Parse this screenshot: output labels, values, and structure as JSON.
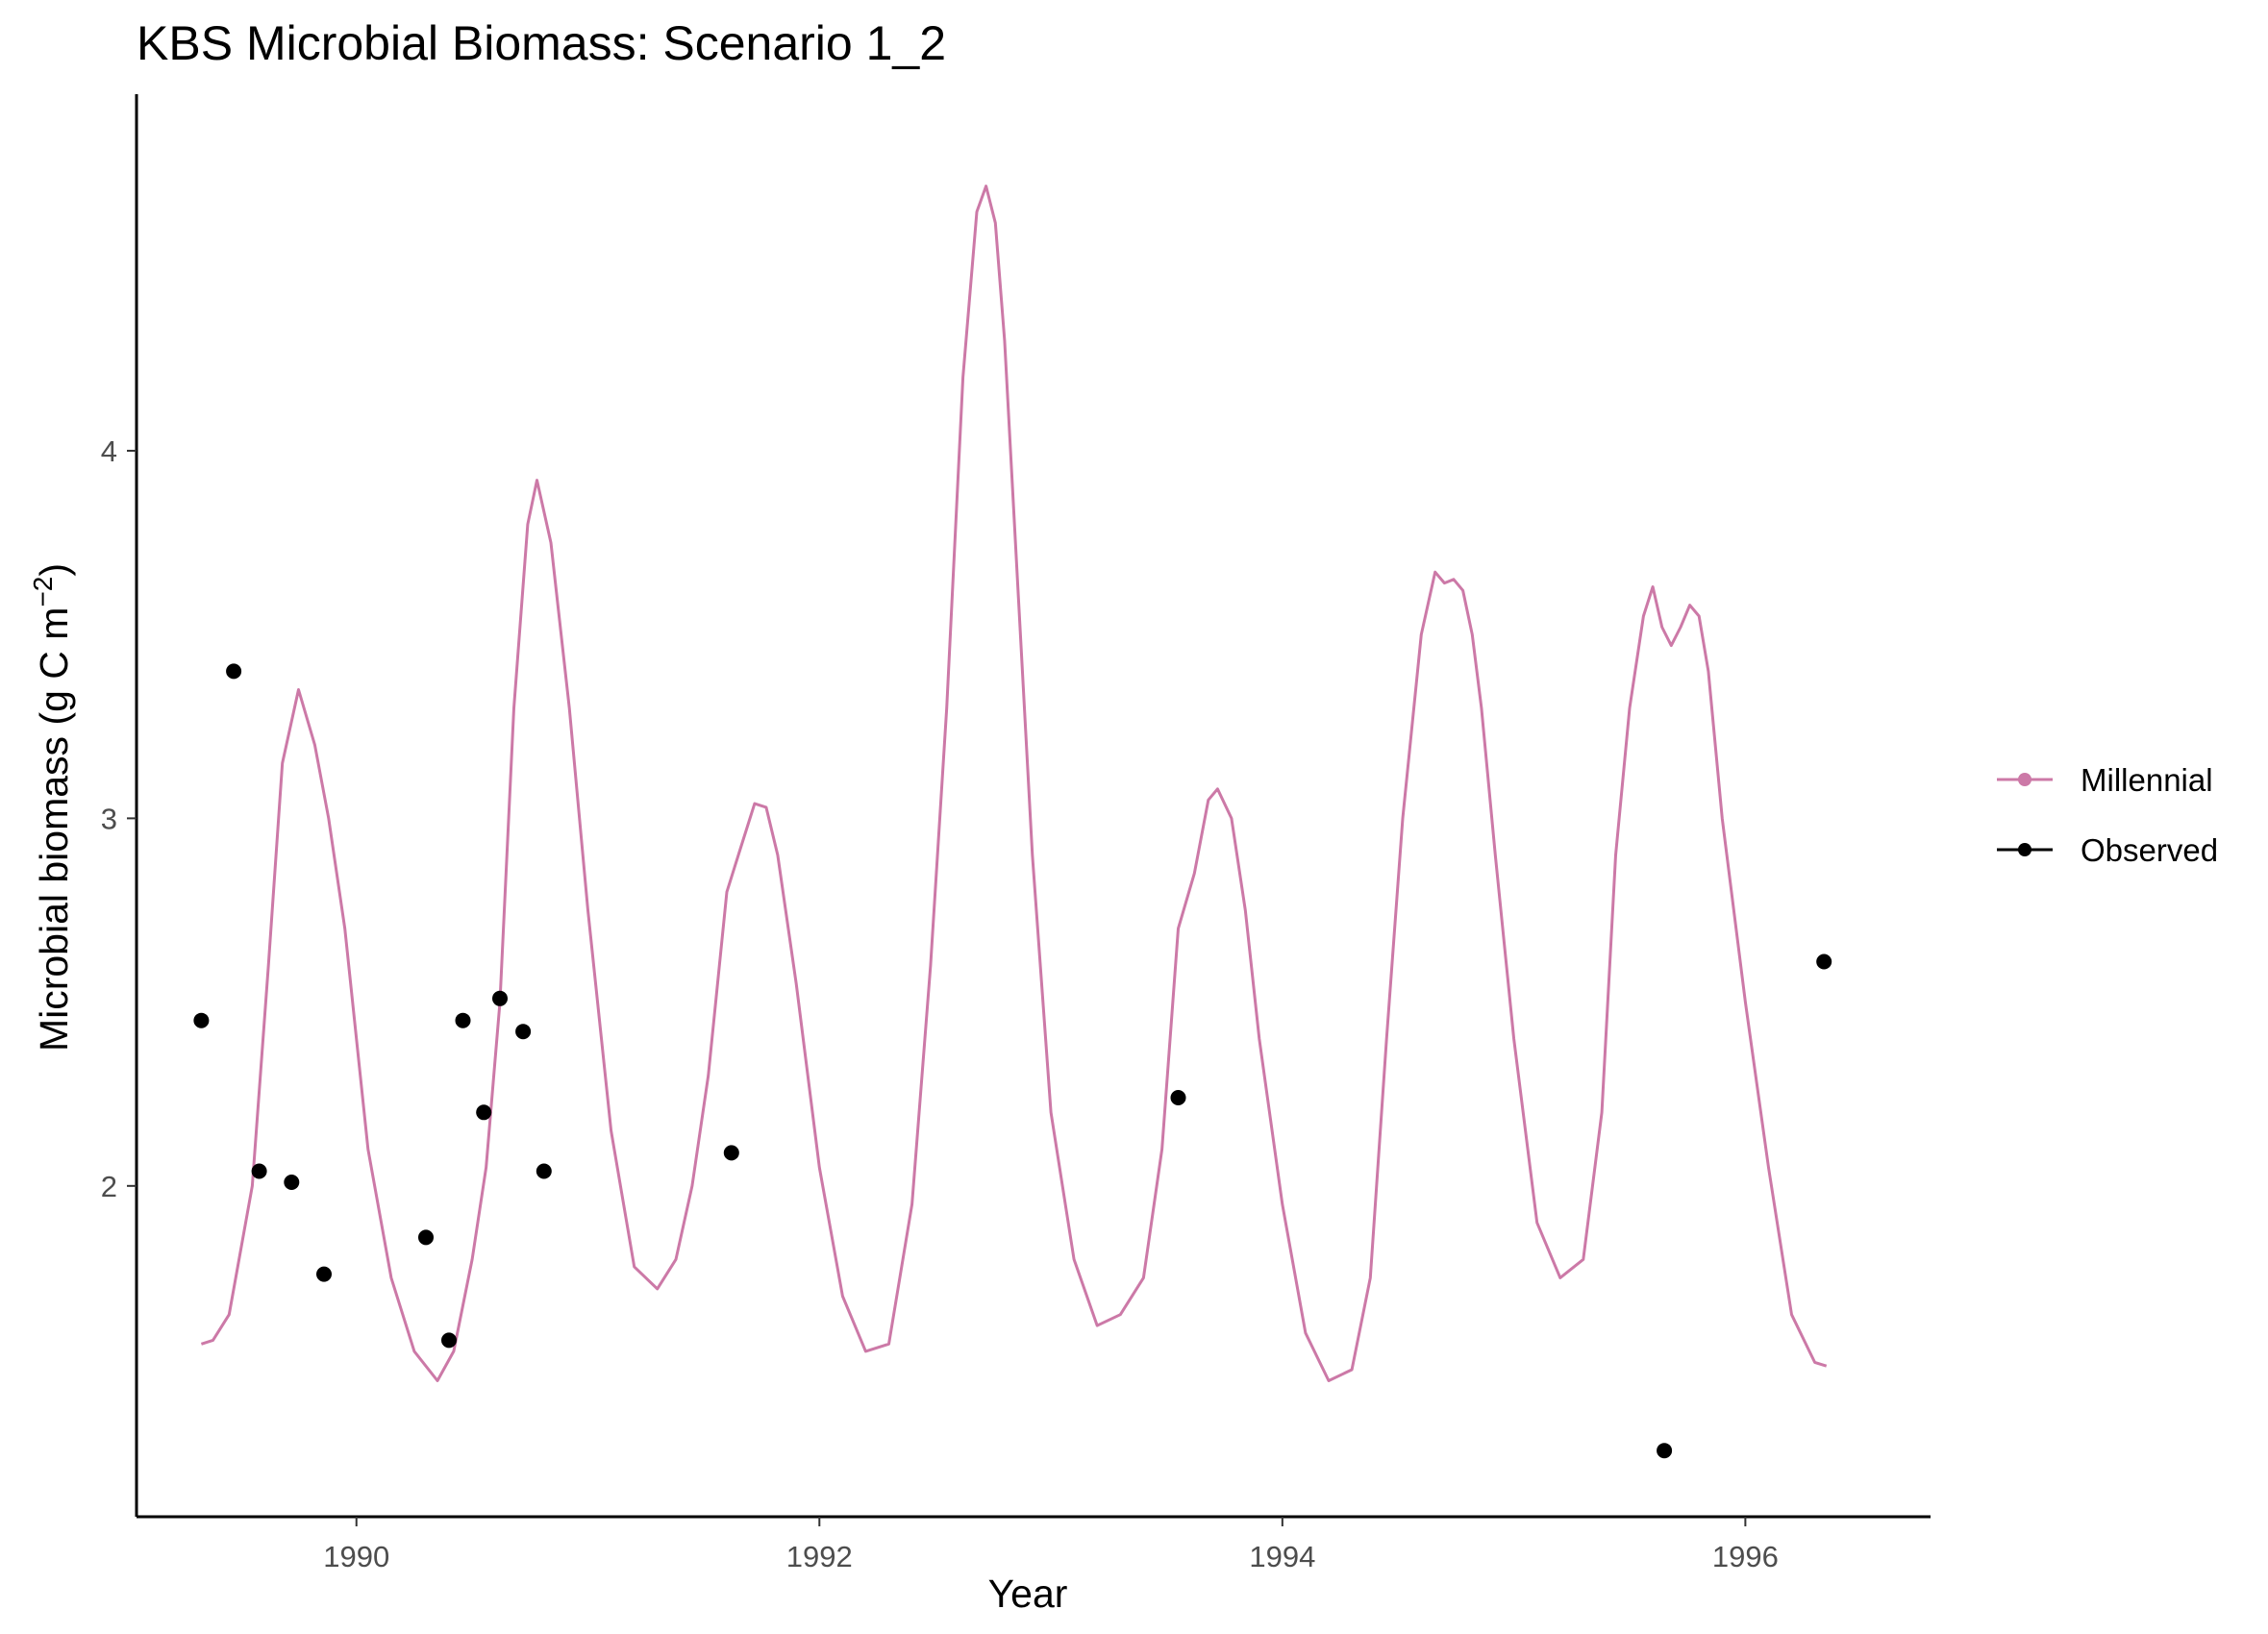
{
  "chart_data": {
    "type": "line",
    "title": "KBS Microbial Biomass: Scenario  1_2",
    "xlabel": "Year",
    "ylabel_main": "Microbial biomass (g C m",
    "ylabel_sup": "−2",
    "ylabel_close": ")",
    "xlim": [
      1989.05,
      1996.8
    ],
    "ylim": [
      1.1,
      4.97
    ],
    "x_ticks": [
      1990,
      1992,
      1994,
      1996
    ],
    "x_tick_labels": [
      "1990",
      "1992",
      "1994",
      "1996"
    ],
    "y_ticks": [
      2,
      3,
      4
    ],
    "y_tick_labels": [
      "2",
      "3",
      "4"
    ],
    "grid": false,
    "legend_position": "right",
    "colors": {
      "Millennial": "#cc79a7",
      "Observed": "#000000"
    },
    "series": [
      {
        "name": "Millennial",
        "style": "line",
        "x": [
          1989.33,
          1989.38,
          1989.45,
          1989.55,
          1989.62,
          1989.68,
          1989.75,
          1989.82,
          1989.88,
          1989.95,
          1990.05,
          1990.15,
          1990.25,
          1990.35,
          1990.42,
          1990.5,
          1990.56,
          1990.62,
          1990.68,
          1990.74,
          1990.78,
          1990.84,
          1990.92,
          1991.0,
          1991.1,
          1991.2,
          1991.3,
          1991.38,
          1991.45,
          1991.52,
          1991.6,
          1991.66,
          1991.72,
          1991.77,
          1991.82,
          1991.9,
          1992.0,
          1992.1,
          1992.2,
          1992.3,
          1992.4,
          1992.48,
          1992.55,
          1992.62,
          1992.68,
          1992.72,
          1992.76,
          1992.8,
          1992.86,
          1992.92,
          1993.0,
          1993.1,
          1993.2,
          1993.3,
          1993.4,
          1993.48,
          1993.55,
          1993.62,
          1993.68,
          1993.72,
          1993.78,
          1993.84,
          1993.9,
          1994.0,
          1994.1,
          1994.2,
          1994.3,
          1994.38,
          1994.45,
          1994.52,
          1994.6,
          1994.66,
          1994.7,
          1994.74,
          1994.78,
          1994.82,
          1994.86,
          1994.92,
          1995.0,
          1995.1,
          1995.2,
          1995.3,
          1995.38,
          1995.44,
          1995.5,
          1995.56,
          1995.6,
          1995.64,
          1995.68,
          1995.72,
          1995.76,
          1995.8,
          1995.84,
          1995.9,
          1996.0,
          1996.1,
          1996.2,
          1996.3,
          1996.35
        ],
        "values": [
          1.57,
          1.58,
          1.65,
          2.0,
          2.6,
          3.15,
          3.35,
          3.2,
          3.0,
          2.7,
          2.1,
          1.75,
          1.55,
          1.47,
          1.55,
          1.8,
          2.05,
          2.5,
          3.3,
          3.8,
          3.92,
          3.75,
          3.3,
          2.75,
          2.15,
          1.78,
          1.72,
          1.8,
          2.0,
          2.3,
          2.8,
          2.92,
          3.04,
          3.03,
          2.9,
          2.55,
          2.05,
          1.7,
          1.55,
          1.57,
          1.95,
          2.6,
          3.3,
          4.2,
          4.65,
          4.72,
          4.62,
          4.3,
          3.6,
          2.9,
          2.2,
          1.8,
          1.62,
          1.65,
          1.75,
          2.1,
          2.7,
          2.85,
          3.05,
          3.08,
          3.0,
          2.75,
          2.4,
          1.95,
          1.6,
          1.47,
          1.5,
          1.75,
          2.4,
          3.0,
          3.5,
          3.67,
          3.64,
          3.65,
          3.62,
          3.5,
          3.3,
          2.9,
          2.4,
          1.9,
          1.75,
          1.8,
          2.2,
          2.9,
          3.3,
          3.55,
          3.63,
          3.52,
          3.47,
          3.52,
          3.58,
          3.55,
          3.4,
          3.0,
          2.5,
          2.05,
          1.65,
          1.52,
          1.51
        ]
      },
      {
        "name": "Observed",
        "style": "points",
        "x": [
          1989.33,
          1989.47,
          1989.58,
          1989.72,
          1989.86,
          1990.3,
          1990.4,
          1990.46,
          1990.55,
          1990.62,
          1990.72,
          1990.81,
          1991.62,
          1993.55,
          1995.65,
          1996.34
        ],
        "values": [
          2.45,
          3.4,
          2.04,
          2.01,
          1.76,
          1.86,
          1.58,
          2.45,
          2.2,
          2.51,
          2.42,
          2.04,
          2.09,
          2.24,
          1.28,
          2.61
        ]
      }
    ]
  }
}
